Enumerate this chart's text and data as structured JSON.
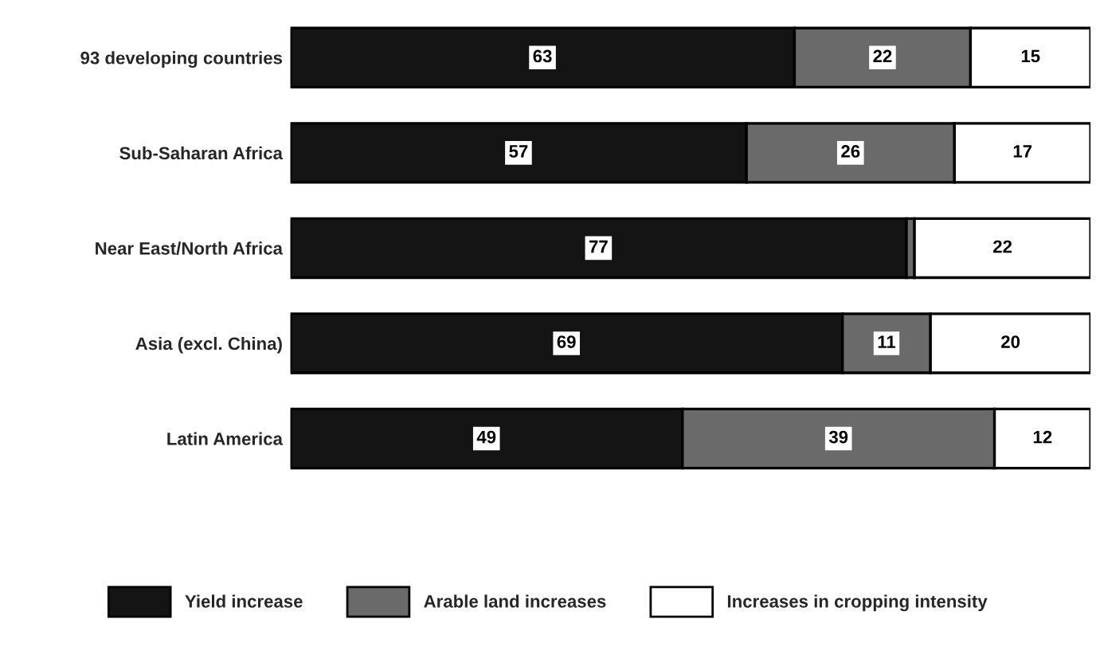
{
  "chart_data": {
    "type": "bar",
    "orientation": "horizontal",
    "stacked": true,
    "data_labels": true,
    "legend": "bottom",
    "grid": false,
    "tick_labels": "y",
    "xlim": [
      0,
      100
    ],
    "categories": [
      "93 developing countries",
      "Sub-Saharan Africa",
      "Near East/North Africa",
      "Asia (excl. China)",
      "Latin America"
    ],
    "series": [
      {
        "name": "Yield increase",
        "color": "#141414",
        "values": [
          63,
          57,
          77,
          69,
          49
        ]
      },
      {
        "name": "Arable land increases",
        "color": "#6a6a6a",
        "values": [
          22,
          26,
          1,
          11,
          39
        ],
        "value_labels": [
          "22",
          "26",
          null,
          "11",
          "39"
        ]
      },
      {
        "name": "Increases in cropping intensity",
        "color": "#ffffff",
        "values": [
          15,
          17,
          22,
          20,
          12
        ]
      }
    ]
  }
}
